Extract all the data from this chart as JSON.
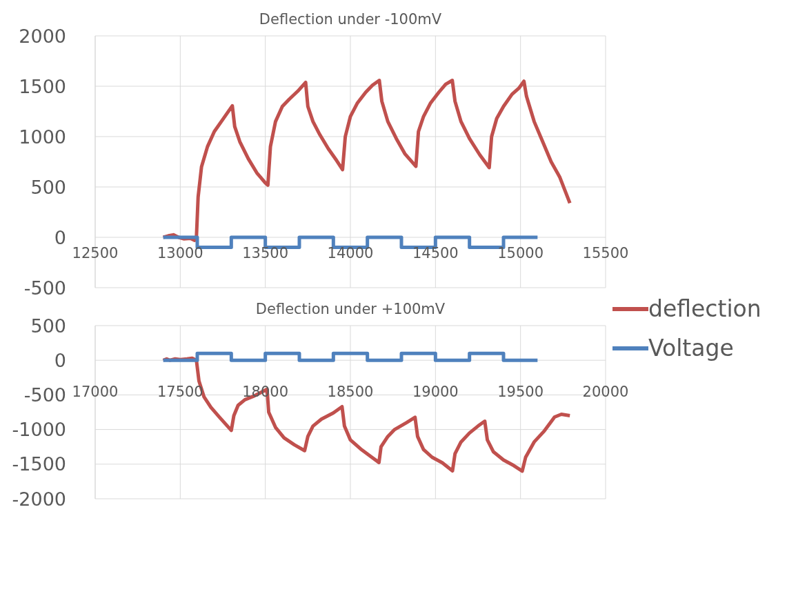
{
  "chart_data": [
    {
      "type": "line",
      "title": "Deflection under -100mV",
      "xlim": [
        12500,
        15500
      ],
      "xticks": [
        12500,
        13000,
        13500,
        14000,
        14500,
        15000,
        15500
      ],
      "ylim": [
        -500,
        2000
      ],
      "yticks": [
        -500,
        0,
        500,
        1000,
        1500,
        2000
      ],
      "grid": true,
      "marker": "none",
      "line_style": "solid",
      "series": [
        {
          "color": "#c0504d",
          "x": [
            12900,
            12930,
            12960,
            12990,
            13020,
            13060,
            13085,
            13095,
            13105,
            13125,
            13160,
            13200,
            13250,
            13306,
            13320,
            13350,
            13400,
            13450,
            13500,
            13515,
            13530,
            13560,
            13600,
            13640,
            13690,
            13737,
            13750,
            13780,
            13820,
            13870,
            13920,
            13954,
            13970,
            14000,
            14040,
            14090,
            14130,
            14170,
            14185,
            14220,
            14270,
            14320,
            14385,
            14400,
            14430,
            14470,
            14520,
            14560,
            14599,
            14615,
            14650,
            14700,
            14760,
            14816,
            14830,
            14860,
            14900,
            14950,
            14990,
            15020,
            15035,
            15080,
            15130,
            15180,
            15230,
            15290
          ],
          "values": [
            0,
            15,
            25,
            0,
            -15,
            -10,
            -30,
            0,
            400,
            700,
            900,
            1050,
            1170,
            1306,
            1100,
            950,
            780,
            640,
            540,
            518,
            900,
            1150,
            1300,
            1370,
            1450,
            1538,
            1300,
            1150,
            1020,
            880,
            760,
            672,
            1000,
            1200,
            1330,
            1440,
            1510,
            1558,
            1350,
            1150,
            980,
            830,
            705,
            1050,
            1200,
            1330,
            1440,
            1520,
            1558,
            1350,
            1150,
            980,
            820,
            692,
            1000,
            1180,
            1300,
            1420,
            1480,
            1550,
            1400,
            1150,
            950,
            750,
            600,
            340
          ]
        },
        {
          "color": "#4f81bd",
          "x": [
            12900,
            13100,
            13100,
            13300,
            13300,
            13500,
            13500,
            13700,
            13700,
            13900,
            13900,
            14100,
            14100,
            14300,
            14300,
            14500,
            14500,
            14700,
            14700,
            14900,
            14900,
            15100
          ],
          "values": [
            0,
            0,
            -100,
            -100,
            0,
            0,
            -100,
            -100,
            0,
            0,
            -100,
            -100,
            0,
            0,
            -100,
            -100,
            0,
            0,
            -100,
            -100,
            0,
            0
          ]
        }
      ]
    },
    {
      "type": "line",
      "title": "Deflection under +100mV",
      "xlim": [
        17000,
        20000
      ],
      "xticks": [
        17000,
        17500,
        18000,
        18500,
        19000,
        19500,
        20000
      ],
      "ylim": [
        -2000,
        500
      ],
      "yticks": [
        -2000,
        -1500,
        -1000,
        -500,
        0,
        500
      ],
      "grid": true,
      "marker": "none",
      "line_style": "solid",
      "legend": "right",
      "series": [
        {
          "name": "deflection",
          "color": "#c0504d",
          "x": [
            17400,
            17420,
            17440,
            17470,
            17500,
            17540,
            17570,
            17595,
            17610,
            17640,
            17680,
            17730,
            17770,
            17800,
            17815,
            17840,
            17880,
            17930,
            18010,
            18020,
            18060,
            18110,
            18170,
            18231,
            18250,
            18280,
            18330,
            18400,
            18451,
            18465,
            18500,
            18560,
            18620,
            18668,
            18680,
            18720,
            18760,
            18830,
            18880,
            18895,
            18930,
            18980,
            19040,
            19100,
            19115,
            19150,
            19200,
            19250,
            19290,
            19305,
            19340,
            19400,
            19460,
            19510,
            19530,
            19580,
            19640,
            19700,
            19740,
            19790
          ],
          "values": [
            0,
            20,
            0,
            20,
            10,
            20,
            30,
            0,
            -300,
            -530,
            -680,
            -820,
            -930,
            -1013,
            -800,
            -650,
            -570,
            -520,
            -419,
            -750,
            -970,
            -1120,
            -1220,
            -1305,
            -1100,
            -950,
            -850,
            -760,
            -670,
            -950,
            -1150,
            -1280,
            -1390,
            -1476,
            -1250,
            -1100,
            -1000,
            -900,
            -824,
            -1100,
            -1290,
            -1400,
            -1480,
            -1597,
            -1350,
            -1180,
            -1050,
            -950,
            -880,
            -1150,
            -1320,
            -1440,
            -1520,
            -1600,
            -1400,
            -1180,
            -1020,
            -820,
            -780,
            -800
          ]
        },
        {
          "name": "Voltage",
          "color": "#4f81bd",
          "x": [
            17400,
            17600,
            17600,
            17800,
            17800,
            18000,
            18000,
            18200,
            18200,
            18400,
            18400,
            18600,
            18600,
            18800,
            18800,
            19000,
            19000,
            19200,
            19200,
            19400,
            19400,
            19600
          ],
          "values": [
            0,
            0,
            100,
            100,
            0,
            0,
            100,
            100,
            0,
            0,
            100,
            100,
            0,
            0,
            100,
            100,
            0,
            0,
            100,
            100,
            0,
            0
          ]
        }
      ]
    }
  ]
}
